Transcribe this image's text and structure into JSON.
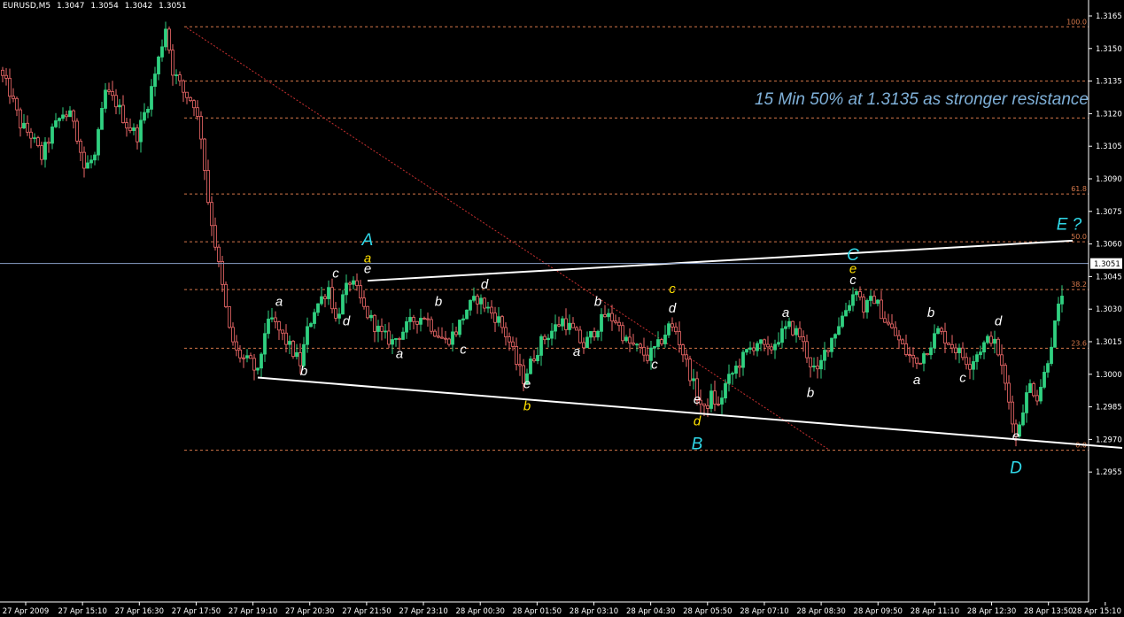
{
  "header": {
    "symbol": "EURUSD,M5",
    "open": "1.3047",
    "high": "1.3054",
    "low": "1.3042",
    "close": "1.3051"
  },
  "annotation": "15 Min 50% at 1.3135 as stronger resistance",
  "colors": {
    "background": "#000000",
    "bull": "#30d080",
    "bear": "#f06a6a",
    "fib": "#d4774a",
    "trendline": "#ffffff",
    "diagonal": "#c83030",
    "current_price_line": "#8aa0c8",
    "label_white": "#ffffff",
    "label_yellow": "#ffe000",
    "label_cyan": "#30d8e8",
    "axis_text": "#ffffff"
  },
  "chart_data": {
    "type": "candlestick",
    "symbol": "EURUSD",
    "timeframe": "M5",
    "current_price": 1.3051,
    "ylim": [
      1.2948,
      1.3175
    ],
    "y_ticks": [
      "1.3165",
      "1.3150",
      "1.3135",
      "1.3120",
      "1.3105",
      "1.3090",
      "1.3075",
      "1.3060",
      "1.3045",
      "1.3030",
      "1.3015",
      "1.3000",
      "1.2985",
      "1.2970",
      "1.2955"
    ],
    "x_ticks": [
      "27 Apr 2009",
      "27 Apr 15:10",
      "27 Apr 16:30",
      "27 Apr 17:50",
      "27 Apr 19:10",
      "27 Apr 20:30",
      "27 Apr 21:50",
      "27 Apr 23:10",
      "28 Apr 00:30",
      "28 Apr 01:50",
      "28 Apr 03:10",
      "28 Apr 04:30",
      "28 Apr 05:50",
      "28 Apr 07:10",
      "28 Apr 08:30",
      "28 Apr 09:50",
      "28 Apr 11:10",
      "28 Apr 12:30",
      "28 Apr 13:50",
      "28 Apr 15:10"
    ],
    "bars_count": 300,
    "fib_levels": [
      {
        "label": "100.0",
        "price": 1.316
      },
      {
        "label": "",
        "price": 1.3135
      },
      {
        "label": "",
        "price": 1.3118
      },
      {
        "label": "61.8",
        "price": 1.3083
      },
      {
        "label": "50.0",
        "price": 1.3061
      },
      {
        "label": "38.2",
        "price": 1.3039
      },
      {
        "label": "23.6",
        "price": 1.3012
      },
      {
        "label": "0.0",
        "price": 1.2965
      }
    ],
    "waypoints": [
      [
        0,
        1.314
      ],
      [
        3,
        1.313
      ],
      [
        6,
        1.3115
      ],
      [
        9,
        1.311
      ],
      [
        12,
        1.31
      ],
      [
        15,
        1.3112
      ],
      [
        18,
        1.312
      ],
      [
        21,
        1.3118
      ],
      [
        24,
        1.3095
      ],
      [
        27,
        1.31
      ],
      [
        30,
        1.313
      ],
      [
        33,
        1.3125
      ],
      [
        36,
        1.3115
      ],
      [
        39,
        1.311
      ],
      [
        42,
        1.3125
      ],
      [
        45,
        1.3145
      ],
      [
        47,
        1.316
      ],
      [
        49,
        1.314
      ],
      [
        52,
        1.313
      ],
      [
        55,
        1.3125
      ],
      [
        57,
        1.311
      ],
      [
        59,
        1.308
      ],
      [
        61,
        1.306
      ],
      [
        63,
        1.304
      ],
      [
        65,
        1.302
      ],
      [
        67,
        1.301
      ],
      [
        69,
        1.3007
      ],
      [
        71,
        1.3005
      ],
      [
        73,
        1.3
      ],
      [
        75,
        1.302
      ],
      [
        77,
        1.3025
      ],
      [
        79,
        1.302
      ],
      [
        81,
        1.3015
      ],
      [
        83,
        1.301
      ],
      [
        85,
        1.3005
      ],
      [
        87,
        1.302
      ],
      [
        89,
        1.303
      ],
      [
        91,
        1.3035
      ],
      [
        93,
        1.304
      ],
      [
        95,
        1.3025
      ],
      [
        97,
        1.3035
      ],
      [
        99,
        1.3043
      ],
      [
        101,
        1.3038
      ],
      [
        103,
        1.303
      ],
      [
        105,
        1.3025
      ],
      [
        108,
        1.3018
      ],
      [
        111,
        1.3015
      ],
      [
        114,
        1.302
      ],
      [
        117,
        1.3025
      ],
      [
        120,
        1.3027
      ],
      [
        123,
        1.302
      ],
      [
        126,
        1.3015
      ],
      [
        129,
        1.302
      ],
      [
        132,
        1.303
      ],
      [
        135,
        1.3035
      ],
      [
        138,
        1.303
      ],
      [
        141,
        1.3025
      ],
      [
        144,
        1.3015
      ],
      [
        146,
        1.3005
      ],
      [
        148,
        1.2998
      ],
      [
        150,
        1.3005
      ],
      [
        153,
        1.3015
      ],
      [
        156,
        1.302
      ],
      [
        159,
        1.3025
      ],
      [
        162,
        1.302
      ],
      [
        165,
        1.3013
      ],
      [
        168,
        1.302
      ],
      [
        171,
        1.3027
      ],
      [
        174,
        1.3025
      ],
      [
        177,
        1.3015
      ],
      [
        180,
        1.3012
      ],
      [
        183,
        1.3008
      ],
      [
        186,
        1.3013
      ],
      [
        189,
        1.3022
      ],
      [
        191,
        1.302
      ],
      [
        193,
        1.301
      ],
      [
        195,
        1.3
      ],
      [
        197,
        1.299
      ],
      [
        199,
        1.2983
      ],
      [
        201,
        1.299
      ],
      [
        203,
        1.2985
      ],
      [
        205,
        1.2995
      ],
      [
        208,
        1.3003
      ],
      [
        211,
        1.301
      ],
      [
        214,
        1.3015
      ],
      [
        217,
        1.301
      ],
      [
        220,
        1.3017
      ],
      [
        223,
        1.3022
      ],
      [
        226,
        1.3018
      ],
      [
        229,
        1.3005
      ],
      [
        231,
        1.3
      ],
      [
        233,
        1.301
      ],
      [
        236,
        1.302
      ],
      [
        239,
        1.303
      ],
      [
        242,
        1.304
      ],
      [
        244,
        1.303
      ],
      [
        247,
        1.3035
      ],
      [
        250,
        1.3025
      ],
      [
        253,
        1.3018
      ],
      [
        256,
        1.301
      ],
      [
        259,
        1.3005
      ],
      [
        262,
        1.3012
      ],
      [
        265,
        1.302
      ],
      [
        268,
        1.3015
      ],
      [
        271,
        1.301
      ],
      [
        274,
        1.3005
      ],
      [
        277,
        1.3012
      ],
      [
        280,
        1.3017
      ],
      [
        282,
        1.301
      ],
      [
        284,
        1.2995
      ],
      [
        286,
        1.298
      ],
      [
        287,
        1.2971
      ],
      [
        289,
        1.2985
      ],
      [
        291,
        1.2995
      ],
      [
        293,
        1.299
      ],
      [
        295,
        1.3
      ],
      [
        297,
        1.3015
      ],
      [
        299,
        1.303
      ],
      [
        301,
        1.3045
      ],
      [
        303,
        1.306
      ],
      [
        305,
        1.305
      ],
      [
        307,
        1.3046
      ]
    ],
    "wave_labels": [
      {
        "text": "A",
        "color": "cyan",
        "bar": 103,
        "price": 1.30595,
        "size": 19
      },
      {
        "text": "a",
        "color": "yellow",
        "bar": 103,
        "price": 1.30515,
        "size": 15
      },
      {
        "text": "e",
        "color": "white",
        "bar": 103,
        "price": 1.30465,
        "size": 15
      },
      {
        "text": "a",
        "color": "white",
        "bar": 78,
        "price": 1.30315,
        "size": 15
      },
      {
        "text": "b",
        "color": "white",
        "bar": 85,
        "price": 1.29995,
        "size": 15
      },
      {
        "text": "c",
        "color": "white",
        "bar": 94,
        "price": 1.30445,
        "size": 15
      },
      {
        "text": "d",
        "color": "white",
        "bar": 97,
        "price": 1.30225,
        "size": 15
      },
      {
        "text": "a",
        "color": "white",
        "bar": 112,
        "price": 1.30075,
        "size": 15
      },
      {
        "text": "b",
        "color": "white",
        "bar": 123,
        "price": 1.30315,
        "size": 15
      },
      {
        "text": "c",
        "color": "white",
        "bar": 130,
        "price": 1.30095,
        "size": 15
      },
      {
        "text": "d",
        "color": "white",
        "bar": 136,
        "price": 1.30395,
        "size": 15
      },
      {
        "text": "e",
        "color": "white",
        "bar": 148,
        "price": 1.29935,
        "size": 15
      },
      {
        "text": "b",
        "color": "yellow",
        "bar": 148,
        "price": 1.29835,
        "size": 15
      },
      {
        "text": "a",
        "color": "white",
        "bar": 162,
        "price": 1.30085,
        "size": 15
      },
      {
        "text": "b",
        "color": "white",
        "bar": 168,
        "price": 1.30315,
        "size": 15
      },
      {
        "text": "c",
        "color": "white",
        "bar": 184,
        "price": 1.30025,
        "size": 15
      },
      {
        "text": "c",
        "color": "yellow",
        "bar": 189,
        "price": 1.30375,
        "size": 15
      },
      {
        "text": "d",
        "color": "white",
        "bar": 189,
        "price": 1.30285,
        "size": 15
      },
      {
        "text": "e",
        "color": "white",
        "bar": 196,
        "price": 1.29865,
        "size": 15
      },
      {
        "text": "d",
        "color": "yellow",
        "bar": 196,
        "price": 1.29765,
        "size": 15
      },
      {
        "text": "B",
        "color": "cyan",
        "bar": 196,
        "price": 1.29655,
        "size": 19
      },
      {
        "text": "a",
        "color": "white",
        "bar": 221,
        "price": 1.30265,
        "size": 15
      },
      {
        "text": "b",
        "color": "white",
        "bar": 228,
        "price": 1.29895,
        "size": 15
      },
      {
        "text": "C",
        "color": "cyan",
        "bar": 240,
        "price": 1.30525,
        "size": 19
      },
      {
        "text": "e",
        "color": "yellow",
        "bar": 240,
        "price": 1.30465,
        "size": 15
      },
      {
        "text": "c",
        "color": "white",
        "bar": 240,
        "price": 1.30415,
        "size": 15
      },
      {
        "text": "b",
        "color": "white",
        "bar": 262,
        "price": 1.30265,
        "size": 15
      },
      {
        "text": "a",
        "color": "white",
        "bar": 258,
        "price": 1.29955,
        "size": 15
      },
      {
        "text": "c",
        "color": "white",
        "bar": 271,
        "price": 1.29965,
        "size": 15
      },
      {
        "text": "d",
        "color": "white",
        "bar": 281,
        "price": 1.30225,
        "size": 15
      },
      {
        "text": "e",
        "color": "white",
        "bar": 286,
        "price": 1.29695,
        "size": 15
      },
      {
        "text": "D",
        "color": "cyan",
        "bar": 286,
        "price": 1.29545,
        "size": 19
      },
      {
        "text": "E ?",
        "color": "cyan",
        "bar": 301,
        "price": 1.30665,
        "size": 19
      }
    ],
    "trendlines": [
      {
        "name": "upper",
        "x1_bar": 103,
        "y1": 1.30431,
        "x2_bar": 302,
        "y2": 1.30615
      },
      {
        "name": "lower",
        "x1_bar": 72,
        "y1": 1.29985,
        "x2_bar": 316,
        "y2": 1.29661
      },
      {
        "name": "diagonal",
        "x1_bar": 52,
        "y1": 1.31595,
        "x2_bar": 233,
        "y2": 1.29655
      }
    ]
  }
}
